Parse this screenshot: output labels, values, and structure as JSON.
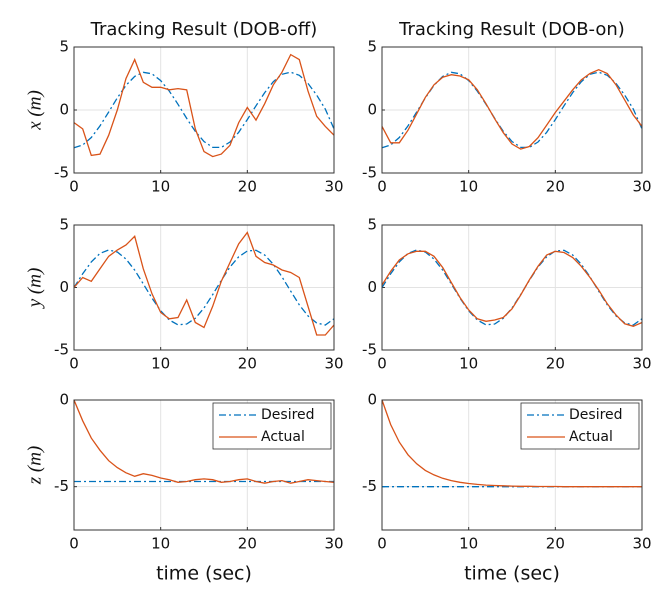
{
  "chart_data": [
    {
      "type": "line",
      "title": "Tracking Result (DOB-off)",
      "ylabel": "x (m)",
      "grid": true,
      "x": [
        0,
        1,
        2,
        3,
        4,
        5,
        6,
        7,
        8,
        9,
        10,
        11,
        12,
        13,
        14,
        15,
        16,
        17,
        18,
        19,
        20,
        21,
        22,
        23,
        24,
        25,
        26,
        27,
        28,
        29,
        30
      ],
      "xlim": [
        0,
        30
      ],
      "xticks": [
        0,
        10,
        20,
        30
      ],
      "ylim": [
        -5,
        5
      ],
      "yticks": [
        -5,
        0,
        5
      ],
      "series": [
        {
          "name": "Desired",
          "color": "#0072bd",
          "linestyle": "dashdot",
          "values": [
            -3,
            -2.78,
            -2.18,
            -1.26,
            -0.16,
            0.96,
            1.96,
            2.67,
            2.99,
            2.87,
            2.33,
            1.5,
            0.45,
            -0.67,
            -1.7,
            -2.5,
            -2.96,
            -2.97,
            -2.54,
            -1.77,
            -0.76,
            0.33,
            1.38,
            2.25,
            2.83,
            3,
            2.75,
            2.11,
            1.18,
            0.07,
            -1.5
          ]
        },
        {
          "name": "Actual",
          "color": "#d95319",
          "linestyle": "solid",
          "values": [
            -1,
            -1.5,
            -3.6,
            -3.5,
            -2,
            0,
            2.5,
            4,
            2.2,
            1.8,
            1.8,
            1.6,
            1.7,
            1.6,
            -1.5,
            -3.3,
            -3.7,
            -3.5,
            -2.8,
            -1,
            0.2,
            -0.8,
            0.5,
            2,
            3,
            4.4,
            4,
            1.5,
            -0.5,
            -1.3,
            -2
          ]
        }
      ]
    },
    {
      "type": "line",
      "title": "Tracking Result (DOB-on)",
      "grid": true,
      "x": [
        0,
        1,
        2,
        3,
        4,
        5,
        6,
        7,
        8,
        9,
        10,
        11,
        12,
        13,
        14,
        15,
        16,
        17,
        18,
        19,
        20,
        21,
        22,
        23,
        24,
        25,
        26,
        27,
        28,
        29,
        30
      ],
      "xlim": [
        0,
        30
      ],
      "xticks": [
        0,
        10,
        20,
        30
      ],
      "ylim": [
        -5,
        5
      ],
      "yticks": [
        -5,
        0,
        5
      ],
      "series": [
        {
          "name": "Desired",
          "color": "#0072bd",
          "linestyle": "dashdot",
          "values": [
            -3,
            -2.78,
            -2.18,
            -1.26,
            -0.16,
            0.96,
            1.96,
            2.67,
            2.99,
            2.87,
            2.33,
            1.5,
            0.45,
            -0.67,
            -1.7,
            -2.5,
            -2.96,
            -2.97,
            -2.54,
            -1.77,
            -0.76,
            0.33,
            1.38,
            2.25,
            2.83,
            3,
            2.75,
            2.11,
            1.18,
            0.07,
            -1.5
          ]
        },
        {
          "name": "Actual",
          "color": "#d95319",
          "linestyle": "solid",
          "values": [
            -1.3,
            -2.6,
            -2.6,
            -1.6,
            -0.3,
            1,
            2,
            2.6,
            2.8,
            2.7,
            2.4,
            1.6,
            0.5,
            -0.7,
            -1.8,
            -2.7,
            -3.1,
            -2.9,
            -2.2,
            -1.2,
            -0.2,
            0.7,
            1.6,
            2.4,
            2.9,
            3.2,
            2.9,
            2,
            0.8,
            -0.4,
            -1.3
          ]
        }
      ]
    },
    {
      "type": "line",
      "ylabel": "y (m)",
      "grid": true,
      "x": [
        0,
        1,
        2,
        3,
        4,
        5,
        6,
        7,
        8,
        9,
        10,
        11,
        12,
        13,
        14,
        15,
        16,
        17,
        18,
        19,
        20,
        21,
        22,
        23,
        24,
        25,
        26,
        27,
        28,
        29,
        30
      ],
      "xlim": [
        0,
        30
      ],
      "xticks": [
        0,
        10,
        20,
        30
      ],
      "ylim": [
        -5,
        5
      ],
      "yticks": [
        -5,
        0,
        5
      ],
      "series": [
        {
          "name": "Desired",
          "color": "#0072bd",
          "linestyle": "dashdot",
          "values": [
            0,
            1.1,
            2.05,
            2.73,
            3,
            2.84,
            2.27,
            1.39,
            0.29,
            -0.85,
            -1.86,
            -2.6,
            -2.98,
            -2.92,
            -2.46,
            -1.64,
            -0.57,
            0.57,
            1.64,
            2.46,
            2.92,
            2.98,
            2.6,
            1.86,
            0.85,
            -0.29,
            -1.39,
            -2.27,
            -2.84,
            -3,
            -2.5
          ]
        },
        {
          "name": "Actual",
          "color": "#d95319",
          "linestyle": "solid",
          "values": [
            0,
            0.8,
            0.5,
            1.5,
            2.5,
            3,
            3.4,
            4.1,
            1.5,
            -0.5,
            -2,
            -2.5,
            -2.4,
            -1,
            -2.8,
            -3.2,
            -1.5,
            0.5,
            2,
            3.5,
            4.4,
            2.5,
            2,
            1.8,
            1.4,
            1.2,
            0.8,
            -1.5,
            -3.8,
            -3.8,
            -3
          ]
        }
      ]
    },
    {
      "type": "line",
      "grid": true,
      "x": [
        0,
        1,
        2,
        3,
        4,
        5,
        6,
        7,
        8,
        9,
        10,
        11,
        12,
        13,
        14,
        15,
        16,
        17,
        18,
        19,
        20,
        21,
        22,
        23,
        24,
        25,
        26,
        27,
        28,
        29,
        30
      ],
      "xlim": [
        0,
        30
      ],
      "xticks": [
        0,
        10,
        20,
        30
      ],
      "ylim": [
        -5,
        5
      ],
      "yticks": [
        -5,
        0,
        5
      ],
      "series": [
        {
          "name": "Desired",
          "color": "#0072bd",
          "linestyle": "dashdot",
          "values": [
            0,
            1.1,
            2.05,
            2.73,
            3,
            2.84,
            2.27,
            1.39,
            0.29,
            -0.85,
            -1.86,
            -2.6,
            -2.98,
            -2.92,
            -2.46,
            -1.64,
            -0.57,
            0.57,
            1.64,
            2.46,
            2.92,
            2.98,
            2.6,
            1.86,
            0.85,
            -0.29,
            -1.39,
            -2.27,
            -2.84,
            -3,
            -2.5
          ]
        },
        {
          "name": "Actual",
          "color": "#d95319",
          "linestyle": "solid",
          "values": [
            0.2,
            1.3,
            2.2,
            2.7,
            2.9,
            2.9,
            2.5,
            1.6,
            0.4,
            -0.8,
            -1.8,
            -2.5,
            -2.7,
            -2.6,
            -2.4,
            -1.7,
            -0.6,
            0.6,
            1.7,
            2.6,
            2.9,
            2.8,
            2.4,
            1.7,
            0.8,
            -0.2,
            -1.3,
            -2.2,
            -2.9,
            -3.1,
            -2.8
          ]
        }
      ]
    },
    {
      "type": "line",
      "ylabel": "z (m)",
      "xlabel": "time (sec)",
      "grid": true,
      "legend": "northeast",
      "x": [
        0,
        1,
        2,
        3,
        4,
        5,
        6,
        7,
        8,
        9,
        10,
        11,
        12,
        13,
        14,
        15,
        16,
        17,
        18,
        19,
        20,
        21,
        22,
        23,
        24,
        25,
        26,
        27,
        28,
        29,
        30
      ],
      "xlim": [
        0,
        30
      ],
      "xticks": [
        0,
        10,
        20,
        30
      ],
      "ylim": [
        -7.5,
        0
      ],
      "yticks": [
        -5,
        0
      ],
      "series": [
        {
          "name": "Desired",
          "color": "#0072bd",
          "linestyle": "dashdot",
          "values": [
            -4.7,
            -4.7,
            -4.7,
            -4.7,
            -4.7,
            -4.7,
            -4.7,
            -4.7,
            -4.7,
            -4.7,
            -4.7,
            -4.7,
            -4.7,
            -4.7,
            -4.7,
            -4.7,
            -4.7,
            -4.7,
            -4.7,
            -4.7,
            -4.7,
            -4.7,
            -4.7,
            -4.7,
            -4.7,
            -4.7,
            -4.7,
            -4.7,
            -4.7,
            -4.7,
            -4.7
          ]
        },
        {
          "name": "Actual",
          "color": "#d95319",
          "linestyle": "solid",
          "values": [
            0,
            -1.2,
            -2.2,
            -2.9,
            -3.5,
            -3.9,
            -4.2,
            -4.4,
            -4.25,
            -4.35,
            -4.5,
            -4.6,
            -4.75,
            -4.7,
            -4.6,
            -4.55,
            -4.6,
            -4.75,
            -4.7,
            -4.6,
            -4.55,
            -4.7,
            -4.8,
            -4.7,
            -4.65,
            -4.8,
            -4.7,
            -4.6,
            -4.65,
            -4.7,
            -4.75
          ]
        }
      ]
    },
    {
      "type": "line",
      "xlabel": "time (sec)",
      "grid": true,
      "legend": "northeast",
      "x": [
        0,
        1,
        2,
        3,
        4,
        5,
        6,
        7,
        8,
        9,
        10,
        11,
        12,
        13,
        14,
        15,
        16,
        17,
        18,
        19,
        20,
        21,
        22,
        23,
        24,
        25,
        26,
        27,
        28,
        29,
        30
      ],
      "xlim": [
        0,
        30
      ],
      "xticks": [
        0,
        10,
        20,
        30
      ],
      "ylim": [
        -7.5,
        0
      ],
      "yticks": [
        -5,
        0
      ],
      "series": [
        {
          "name": "Desired",
          "color": "#0072bd",
          "linestyle": "dashdot",
          "values": [
            -5,
            -5,
            -5,
            -5,
            -5,
            -5,
            -5,
            -5,
            -5,
            -5,
            -5,
            -5,
            -5,
            -5,
            -5,
            -5,
            -5,
            -5,
            -5,
            -5,
            -5,
            -5,
            -5,
            -5,
            -5,
            -5,
            -5,
            -5,
            -5,
            -5,
            -5
          ]
        },
        {
          "name": "Actual",
          "color": "#d95319",
          "linestyle": "solid",
          "values": [
            0,
            -1.42,
            -2.43,
            -3.16,
            -3.68,
            -4.06,
            -4.32,
            -4.52,
            -4.65,
            -4.75,
            -4.82,
            -4.87,
            -4.91,
            -4.93,
            -4.95,
            -4.97,
            -4.98,
            -4.98,
            -4.99,
            -4.99,
            -4.99,
            -5,
            -5,
            -5,
            -5,
            -5,
            -5,
            -5,
            -5,
            -5,
            -5
          ]
        }
      ]
    }
  ]
}
